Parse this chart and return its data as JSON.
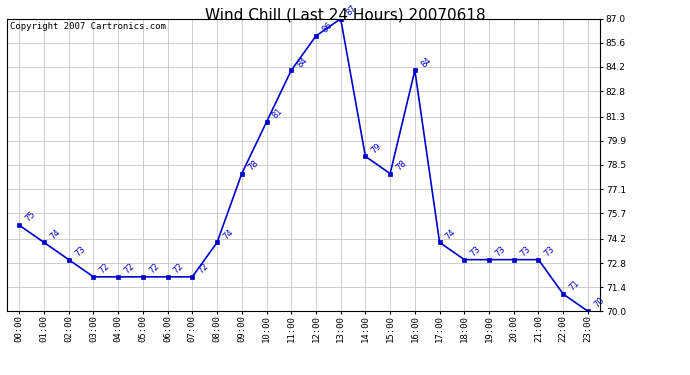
{
  "title": "Wind Chill (Last 24 Hours) 20070618",
  "copyright": "Copyright 2007 Cartronics.com",
  "hours": [
    "00:00",
    "01:00",
    "02:00",
    "03:00",
    "04:00",
    "05:00",
    "06:00",
    "07:00",
    "08:00",
    "09:00",
    "10:00",
    "11:00",
    "12:00",
    "13:00",
    "14:00",
    "15:00",
    "16:00",
    "17:00",
    "18:00",
    "19:00",
    "20:00",
    "21:00",
    "22:00",
    "23:00"
  ],
  "values": [
    75,
    74,
    73,
    72,
    72,
    72,
    72,
    72,
    74,
    78,
    81,
    84,
    86,
    87,
    79,
    78,
    84,
    74,
    73,
    73,
    73,
    73,
    71,
    70
  ],
  "line_color": "#0000cc",
  "marker_color": "#0000cc",
  "background_color": "#ffffff",
  "grid_color": "#bbbbbb",
  "ylim": [
    70.0,
    87.0
  ],
  "yticks": [
    70.0,
    71.4,
    72.8,
    74.2,
    75.7,
    77.1,
    78.5,
    79.9,
    81.3,
    82.8,
    84.2,
    85.6,
    87.0
  ],
  "title_fontsize": 11,
  "copyright_fontsize": 6.5,
  "label_fontsize": 6,
  "tick_fontsize": 6.5
}
